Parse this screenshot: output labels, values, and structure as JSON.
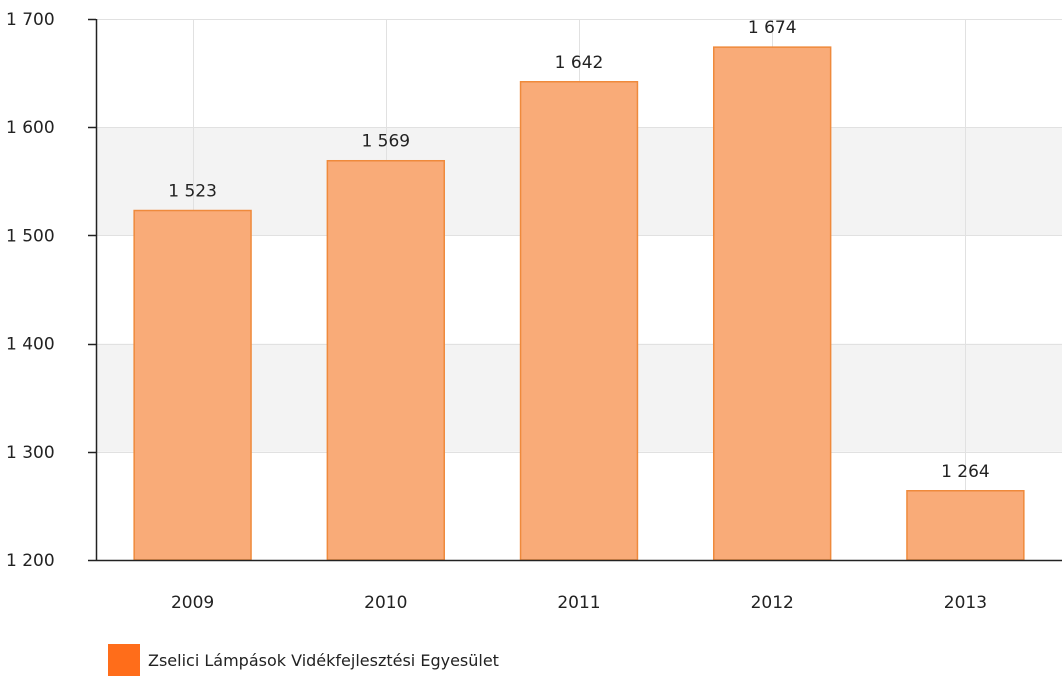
{
  "chart_data": {
    "type": "bar",
    "categories": [
      "2009",
      "2010",
      "2011",
      "2012",
      "2013"
    ],
    "series": [
      {
        "name": "Zselici Lámpások Vidékfejlesztési Egyesület",
        "values": [
          1523,
          1569,
          1642,
          1674,
          1264
        ],
        "value_labels": [
          "1 523",
          "1 569",
          "1 642",
          "1 674",
          "1 264"
        ]
      }
    ],
    "title": "",
    "xlabel": "",
    "ylabel": "",
    "ylim": [
      1200,
      1700
    ],
    "yticks": [
      1200,
      1300,
      1400,
      1500,
      1600,
      1700
    ],
    "ytick_labels": [
      "1 200",
      "1 300",
      "1 400",
      "1 500",
      "1 600",
      "1 700"
    ],
    "grid": true,
    "legend_position": "bottom-left",
    "colors": {
      "bar_fill": "#f9ab78",
      "bar_stroke": "#ef8a3c",
      "legend_swatch": "#ff6d1a",
      "band_shade": "#f3f3f3",
      "grid": "#e1e1e1",
      "axis": "#222222"
    }
  }
}
